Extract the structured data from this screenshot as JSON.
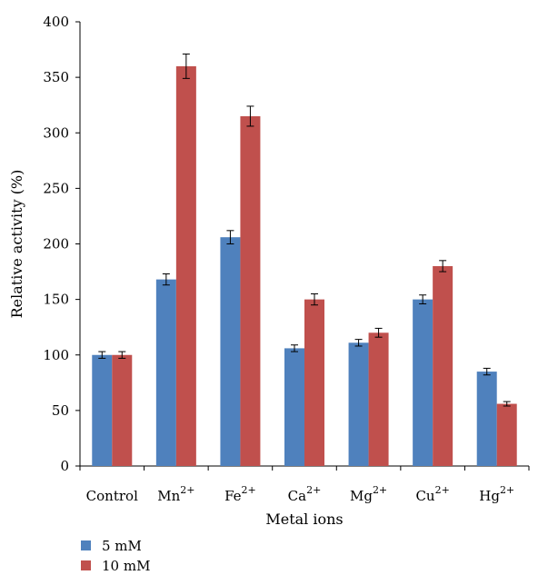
{
  "chart_data": {
    "type": "bar",
    "categories": [
      {
        "base": "Control",
        "sup": ""
      },
      {
        "base": "Mn",
        "sup": "2+"
      },
      {
        "base": "Fe",
        "sup": "2+"
      },
      {
        "base": "Ca",
        "sup": "2+"
      },
      {
        "base": "Mg",
        "sup": "2+"
      },
      {
        "base": "Cu",
        "sup": "2+"
      },
      {
        "base": "Hg",
        "sup": "2+"
      }
    ],
    "series": [
      {
        "name": "5 mM",
        "color": "#4F81BD",
        "values": [
          100,
          168,
          206,
          106,
          111,
          150,
          85
        ],
        "errors": [
          3,
          5,
          6,
          3,
          3,
          4,
          3
        ]
      },
      {
        "name": "10 mM",
        "color": "#C0504D",
        "values": [
          100,
          360,
          315,
          150,
          120,
          180,
          56
        ],
        "errors": [
          3,
          11,
          9,
          5,
          4,
          5,
          2
        ]
      }
    ],
    "xlabel": "Metal ions",
    "ylabel": "Relative activity (%)",
    "ylim": [
      0,
      400
    ],
    "yticks": [
      0,
      50,
      100,
      150,
      200,
      250,
      300,
      350,
      400
    ],
    "grid": false,
    "legend_position": "bottom-left"
  }
}
